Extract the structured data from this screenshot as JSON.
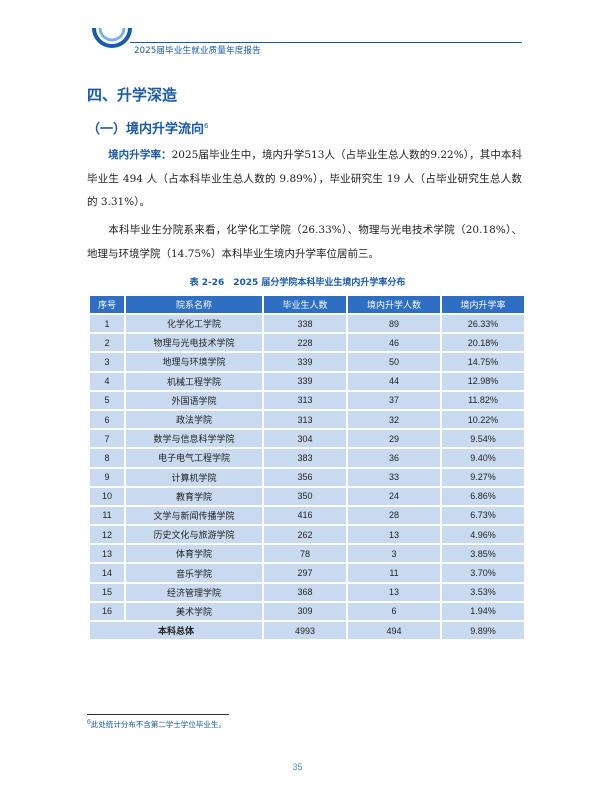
{
  "header": {
    "title": "2025届毕业生就业质量年度报告"
  },
  "section_title": "四、升学深造",
  "subsection": {
    "title": "（一）境内升学流向",
    "footnote_ref": "6"
  },
  "paragraph1": {
    "lead": "境内升学率：",
    "body": "2025届毕业生中，境内升学513人（占毕业生总人数的9.22%），其中本科毕业生 494 人（占本科毕业生总人数的 9.89%），毕业研究生 19 人（占毕业研究生总人数的 3.31%）。"
  },
  "paragraph2": "本科毕业生分院系来看，化学化工学院（26.33%）、物理与光电技术学院（20.18%）、地理与环境学院（14.75%）本科毕业生境内升学率位居前三。",
  "table": {
    "caption": "表 2-26　2025 届分学院本科毕业生境内升学率分布",
    "headers": [
      "序号",
      "院系名称",
      "毕业生人数",
      "境内升学人数",
      "境内升学率"
    ],
    "rows": [
      [
        "1",
        "化学化工学院",
        "338",
        "89",
        "26.33%"
      ],
      [
        "2",
        "物理与光电技术学院",
        "228",
        "46",
        "20.18%"
      ],
      [
        "3",
        "地理与环境学院",
        "339",
        "50",
        "14.75%"
      ],
      [
        "4",
        "机械工程学院",
        "339",
        "44",
        "12.98%"
      ],
      [
        "5",
        "外国语学院",
        "313",
        "37",
        "11.82%"
      ],
      [
        "6",
        "政法学院",
        "313",
        "32",
        "10.22%"
      ],
      [
        "7",
        "数学与信息科学学院",
        "304",
        "29",
        "9.54%"
      ],
      [
        "8",
        "电子电气工程学院",
        "383",
        "36",
        "9.40%"
      ],
      [
        "9",
        "计算机学院",
        "356",
        "33",
        "9.27%"
      ],
      [
        "10",
        "教育学院",
        "350",
        "24",
        "6.86%"
      ],
      [
        "11",
        "文学与新闻传播学院",
        "416",
        "28",
        "6.73%"
      ],
      [
        "12",
        "历史文化与旅游学院",
        "262",
        "13",
        "4.96%"
      ],
      [
        "13",
        "体育学院",
        "78",
        "3",
        "3.85%"
      ],
      [
        "14",
        "音乐学院",
        "297",
        "11",
        "3.70%"
      ],
      [
        "15",
        "经济管理学院",
        "368",
        "13",
        "3.53%"
      ],
      [
        "16",
        "美术学院",
        "309",
        "6",
        "1.94%"
      ]
    ],
    "total": {
      "label": "本科总体",
      "graduates": "4993",
      "enrolled": "494",
      "rate": "9.89%"
    }
  },
  "footnote": {
    "mark": "6",
    "text": "此处统计分布不含第二学士学位毕业生。"
  },
  "page_number": "35",
  "colors": {
    "accent": "#1a5aa8",
    "header_fill": "#2e6fc4",
    "cell_fill": "#c9daf0"
  }
}
